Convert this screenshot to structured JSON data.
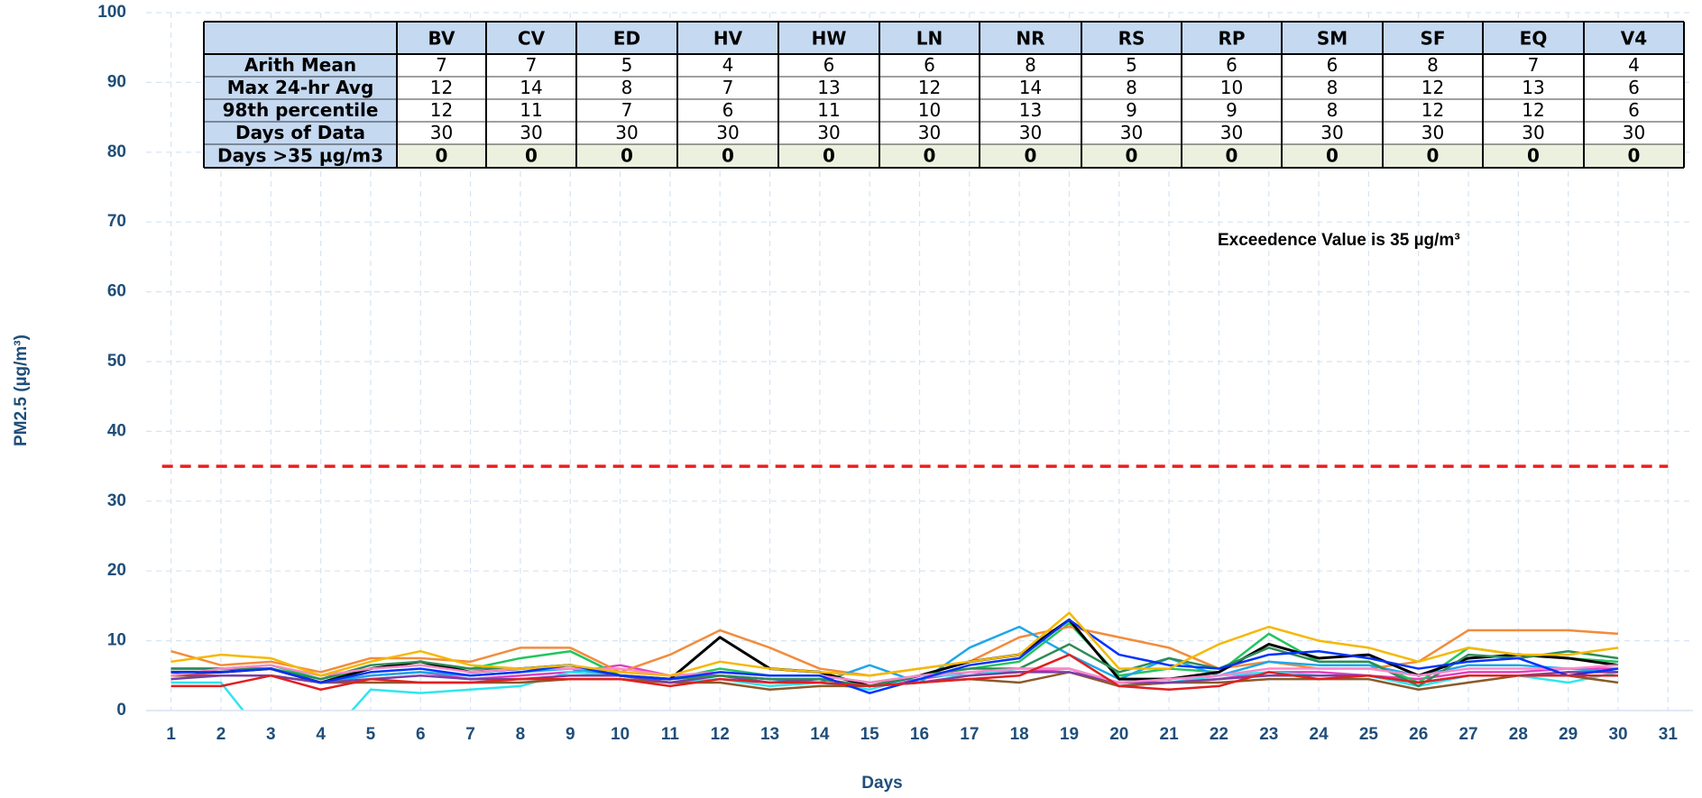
{
  "chart_data": {
    "type": "line",
    "ylabel": "PM2.5 (µg/m³)",
    "xlabel": "Days",
    "annotation": "Exceedence Value is 35 µg/m³",
    "threshold": 35,
    "threshold_color": "#ee1c1c",
    "grid": true,
    "xlim": [
      0.5,
      31.5
    ],
    "xticks": [
      1,
      2,
      3,
      4,
      5,
      6,
      7,
      8,
      9,
      10,
      11,
      12,
      13,
      14,
      15,
      16,
      17,
      18,
      19,
      20,
      21,
      22,
      23,
      24,
      25,
      26,
      27,
      28,
      29,
      30,
      31
    ],
    "ylim": [
      0,
      100
    ],
    "yticks": [
      0,
      10,
      20,
      30,
      40,
      50,
      60,
      70,
      80,
      90,
      100
    ],
    "x": [
      1,
      2,
      3,
      4,
      5,
      6,
      7,
      8,
      9,
      10,
      11,
      12,
      13,
      14,
      15,
      16,
      17,
      18,
      19,
      20,
      21,
      22,
      23,
      24,
      25,
      26,
      27,
      28,
      29,
      30
    ],
    "series": [
      {
        "name": "BV",
        "color": "#e040c0",
        "values": [
          5,
          5.5,
          6,
          4,
          5,
          5.5,
          4.5,
          5,
          5.5,
          6.5,
          5,
          5,
          4.5,
          4.5,
          3.5,
          4.5,
          5.5,
          5.5,
          6,
          3.5,
          4,
          4.5,
          5.5,
          5.5,
          5,
          4.5,
          5.5,
          5.5,
          6,
          6
        ]
      },
      {
        "name": "CV",
        "color": "#22c55e",
        "values": [
          6,
          6,
          6.5,
          4.5,
          6,
          6.5,
          6,
          7.5,
          8.5,
          5,
          4.5,
          6,
          5,
          5,
          4,
          5,
          6,
          7,
          12.5,
          5,
          6,
          5.5,
          11,
          7,
          7,
          4,
          9,
          8,
          7.5,
          7
        ]
      },
      {
        "name": "ED",
        "color": "#2ee6f0",
        "values": [
          4,
          4,
          -5,
          -5,
          3,
          2.5,
          3,
          3.5,
          5.5,
          5,
          4,
          4.5,
          3.5,
          4,
          3,
          5,
          5,
          6,
          6,
          4,
          4,
          5,
          5.5,
          5,
          5,
          3.5,
          5,
          5,
          4,
          5.5
        ]
      },
      {
        "name": "HV",
        "color": "#8b5a2b",
        "values": [
          5,
          5,
          5,
          4,
          4,
          4,
          4,
          4,
          4.5,
          4.5,
          4,
          4,
          3,
          3.5,
          3.5,
          4,
          4.5,
          4,
          5.5,
          3.5,
          4,
          4,
          4.5,
          4.5,
          4.5,
          3,
          4,
          5,
          5,
          4
        ]
      },
      {
        "name": "HW",
        "color": "#f28c3c",
        "values": [
          8.5,
          6.5,
          7,
          5.5,
          7.5,
          7.5,
          7,
          9,
          9,
          5.5,
          8,
          11.5,
          9,
          6,
          5,
          6,
          7,
          10.5,
          12,
          10.5,
          9,
          6,
          7,
          6,
          6,
          7,
          11.5,
          11.5,
          11.5,
          11
        ]
      },
      {
        "name": "LN",
        "color": "#1ea7e8",
        "values": [
          6,
          6,
          6,
          4,
          5,
          5.5,
          5,
          5.5,
          6,
          5,
          4,
          5,
          4.5,
          4,
          6.5,
          4,
          9,
          12,
          8,
          4.5,
          7.5,
          5,
          7,
          6.5,
          6.5,
          5,
          6.5,
          6.5,
          6,
          5.5
        ]
      },
      {
        "name": "NR",
        "color": "#000000",
        "values": [
          5.5,
          5.5,
          6,
          4,
          6,
          7,
          5.5,
          6,
          6.5,
          5,
          4.5,
          10.5,
          6,
          5.5,
          3.5,
          5,
          7,
          8,
          13,
          4.5,
          4.5,
          5.5,
          9.5,
          7.5,
          8,
          5,
          7.5,
          8,
          7.5,
          6.5
        ]
      },
      {
        "name": "RS",
        "color": "#7b3fa0",
        "values": [
          4.5,
          5,
          5,
          4,
          4.5,
          5,
          4.5,
          4.5,
          5,
          5,
          4,
          5,
          4,
          4.5,
          3.5,
          4,
          5,
          5.5,
          5.5,
          4,
          4,
          4.5,
          5,
          5,
          5,
          4,
          5,
          5,
          5.5,
          5.5
        ]
      },
      {
        "name": "RP",
        "color": "#2e8b57",
        "values": [
          6,
          6,
          6,
          4.5,
          6.5,
          7,
          6,
          6,
          6.5,
          5,
          4.5,
          5,
          4.5,
          4.5,
          3.5,
          5,
          6,
          6,
          9.5,
          5.5,
          7.5,
          6,
          9,
          7,
          7,
          3.5,
          8,
          7.5,
          8.5,
          7.5
        ]
      },
      {
        "name": "SM",
        "color": "#ff88cc",
        "values": [
          5,
          6,
          6.5,
          5,
          6,
          6.5,
          5.5,
          6,
          6,
          6,
          5,
          5.5,
          5,
          5,
          4,
          5,
          5.5,
          6,
          6,
          4,
          4.5,
          5,
          6,
          6,
          6,
          5,
          6,
          6,
          6,
          6.5
        ]
      },
      {
        "name": "SF",
        "color": "#0033ff",
        "values": [
          5.5,
          5.5,
          6,
          4,
          5.5,
          6,
          5,
          5.5,
          6.5,
          5,
          4.5,
          5.5,
          5,
          5,
          2.5,
          4.5,
          6.5,
          7.5,
          13,
          8,
          6.5,
          6,
          8,
          8.5,
          7.5,
          6,
          7,
          7.5,
          5,
          6
        ]
      },
      {
        "name": "EQ",
        "color": "#f5b800",
        "values": [
          7,
          8,
          7.5,
          5,
          7,
          8.5,
          6.5,
          6,
          6.5,
          5.5,
          5,
          7,
          6,
          5.5,
          5,
          6,
          7,
          8,
          14,
          6,
          6,
          9.5,
          12,
          10,
          9,
          7,
          9,
          8,
          8,
          9
        ]
      },
      {
        "name": "V4",
        "color": "#e02020",
        "values": [
          3.5,
          3.5,
          5,
          3,
          4.5,
          4,
          4,
          4.5,
          4.5,
          4.5,
          3.5,
          4.5,
          4,
          4,
          3.5,
          4,
          4.5,
          5,
          8,
          3.5,
          3,
          3.5,
          5.5,
          4.5,
          5,
          4,
          5,
          5,
          5,
          5
        ]
      }
    ],
    "table": {
      "rows": [
        {
          "label": "Arith Mean",
          "values": [
            7,
            7,
            5,
            4,
            6,
            6,
            8,
            5,
            6,
            6,
            8,
            7,
            4
          ]
        },
        {
          "label": "Max 24-hr Avg",
          "values": [
            12,
            14,
            8,
            7,
            13,
            12,
            14,
            8,
            10,
            8,
            12,
            13,
            6
          ]
        },
        {
          "label": "98th percentile",
          "values": [
            12,
            11,
            7,
            6,
            11,
            10,
            13,
            9,
            9,
            8,
            12,
            12,
            6
          ]
        },
        {
          "label": "Days of Data",
          "values": [
            30,
            30,
            30,
            30,
            30,
            30,
            30,
            30,
            30,
            30,
            30,
            30,
            30
          ]
        },
        {
          "label": "Days >35 µg/m3",
          "values": [
            0,
            0,
            0,
            0,
            0,
            0,
            0,
            0,
            0,
            0,
            0,
            0,
            0
          ]
        }
      ]
    }
  }
}
